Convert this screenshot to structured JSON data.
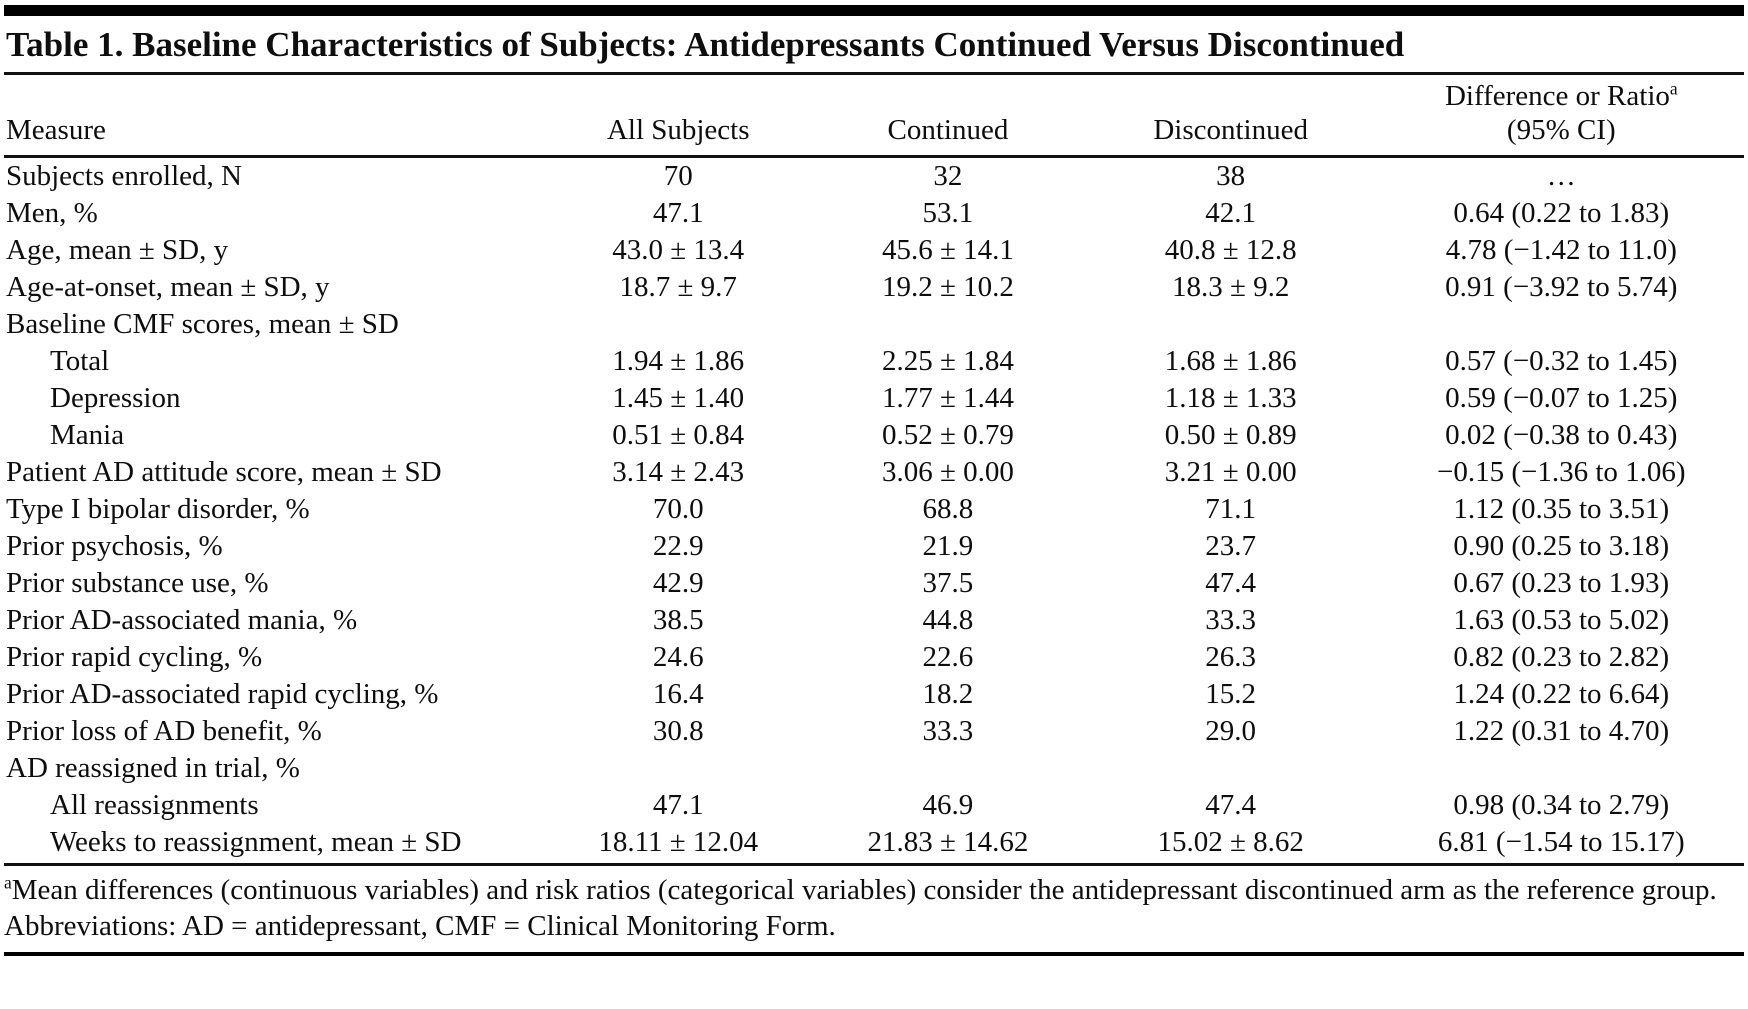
{
  "table": {
    "title": "Table 1. Baseline Characteristics of Subjects: Antidepressants Continued Versus Discontinued",
    "headers": {
      "measure": "Measure",
      "all_subjects": "All Subjects",
      "continued": "Continued",
      "discontinued": "Discontinued",
      "difference_line1": "Difference or Ratio",
      "difference_footnote_marker": "a",
      "difference_line2": "(95% CI)"
    },
    "rows": [
      {
        "indent": false,
        "cells": [
          "Subjects enrolled, N",
          "70",
          "32",
          "38",
          "…"
        ]
      },
      {
        "indent": false,
        "cells": [
          "Men, %",
          "47.1",
          "53.1",
          "42.1",
          "0.64 (0.22 to 1.83)"
        ]
      },
      {
        "indent": false,
        "cells": [
          "Age, mean ± SD, y",
          "43.0 ± 13.4",
          "45.6 ± 14.1",
          "40.8 ± 12.8",
          "4.78 (−1.42 to 11.0)"
        ]
      },
      {
        "indent": false,
        "cells": [
          "Age-at-onset, mean ± SD, y",
          "18.7 ± 9.7",
          "19.2 ± 10.2",
          "18.3 ± 9.2",
          "0.91 (−3.92 to 5.74)"
        ]
      },
      {
        "indent": false,
        "cells": [
          "Baseline CMF scores, mean ± SD",
          "",
          "",
          "",
          ""
        ]
      },
      {
        "indent": true,
        "cells": [
          "Total",
          "1.94 ± 1.86",
          "2.25 ± 1.84",
          "1.68 ± 1.86",
          "0.57 (−0.32 to 1.45)"
        ]
      },
      {
        "indent": true,
        "cells": [
          "Depression",
          "1.45 ± 1.40",
          "1.77 ± 1.44",
          "1.18 ± 1.33",
          "0.59 (−0.07 to 1.25)"
        ]
      },
      {
        "indent": true,
        "cells": [
          "Mania",
          "0.51 ± 0.84",
          "0.52 ± 0.79",
          "0.50 ± 0.89",
          "0.02 (−0.38 to 0.43)"
        ]
      },
      {
        "indent": false,
        "cells": [
          "Patient AD attitude score, mean ± SD",
          "3.14 ± 2.43",
          "3.06 ± 0.00",
          "3.21 ± 0.00",
          "−0.15 (−1.36 to 1.06)"
        ]
      },
      {
        "indent": false,
        "cells": [
          "Type I bipolar disorder, %",
          "70.0",
          "68.8",
          "71.1",
          "1.12 (0.35 to 3.51)"
        ]
      },
      {
        "indent": false,
        "cells": [
          "Prior psychosis, %",
          "22.9",
          "21.9",
          "23.7",
          "0.90 (0.25 to 3.18)"
        ]
      },
      {
        "indent": false,
        "cells": [
          "Prior substance use, %",
          "42.9",
          "37.5",
          "47.4",
          "0.67 (0.23 to 1.93)"
        ]
      },
      {
        "indent": false,
        "cells": [
          "Prior AD-associated mania, %",
          "38.5",
          "44.8",
          "33.3",
          "1.63 (0.53 to 5.02)"
        ]
      },
      {
        "indent": false,
        "cells": [
          "Prior rapid cycling, %",
          "24.6",
          "22.6",
          "26.3",
          "0.82 (0.23 to 2.82)"
        ]
      },
      {
        "indent": false,
        "cells": [
          "Prior AD-associated rapid cycling, %",
          "16.4",
          "18.2",
          "15.2",
          "1.24 (0.22 to 6.64)"
        ]
      },
      {
        "indent": false,
        "cells": [
          "Prior loss of AD benefit, %",
          "30.8",
          "33.3",
          "29.0",
          "1.22 (0.31 to 4.70)"
        ]
      },
      {
        "indent": false,
        "cells": [
          "AD reassigned in trial, %",
          "",
          "",
          "",
          ""
        ]
      },
      {
        "indent": true,
        "cells": [
          "All reassignments",
          "47.1",
          "46.9",
          "47.4",
          "0.98 (0.34 to 2.79)"
        ]
      },
      {
        "indent": true,
        "cells": [
          "Weeks to reassignment, mean ± SD",
          "18.11 ± 12.04",
          "21.83 ± 14.62",
          "15.02 ± 8.62",
          "6.81 (−1.54 to 15.17)"
        ]
      }
    ]
  },
  "footnotes": {
    "a": {
      "marker": "a",
      "text": "Mean differences (continuous variables) and risk ratios (categorical variables) consider the antidepressant discontinued arm as the reference group."
    },
    "abbreviations": "Abbreviations: AD = antidepressant, CMF = Clinical Monitoring Form."
  }
}
